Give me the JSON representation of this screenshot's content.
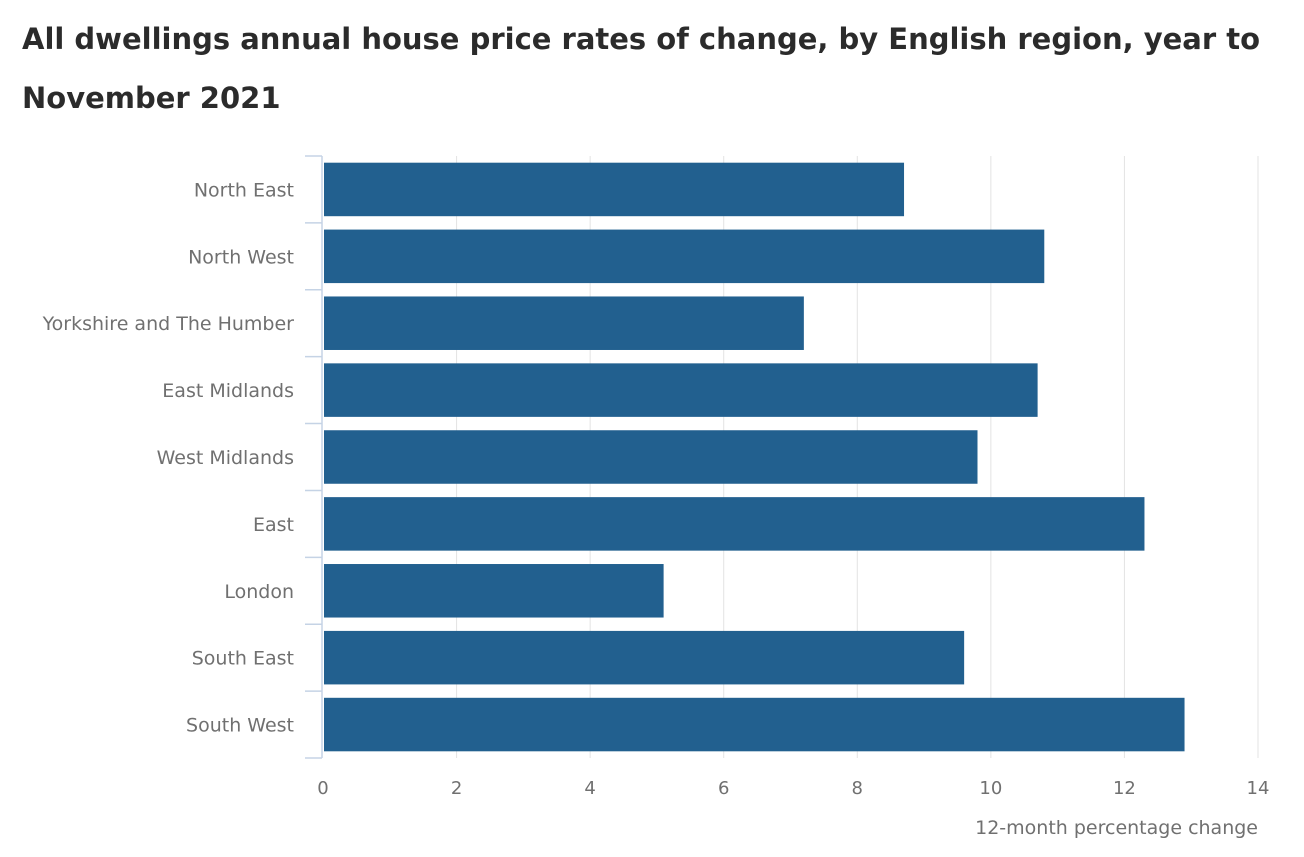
{
  "chart_data": {
    "type": "bar",
    "orientation": "horizontal",
    "title": "All dwellings annual house price rates of change, by English region, year to November 2021",
    "xlabel": "12-month percentage change",
    "ylabel": "",
    "categories": [
      "North East",
      "North West",
      "Yorkshire and The Humber",
      "East Midlands",
      "West Midlands",
      "East",
      "London",
      "South East",
      "South West"
    ],
    "values": [
      8.7,
      10.8,
      7.2,
      10.7,
      9.8,
      12.3,
      5.1,
      9.6,
      12.9
    ],
    "xlim": [
      0,
      14
    ],
    "xticks": [
      "0",
      "2",
      "4",
      "6",
      "8",
      "10",
      "12",
      "14"
    ],
    "grid": true,
    "legend": "none",
    "bar_color": "#22608f",
    "grid_color": "#e3e3e3",
    "axis_color": "#c5d3e5"
  }
}
